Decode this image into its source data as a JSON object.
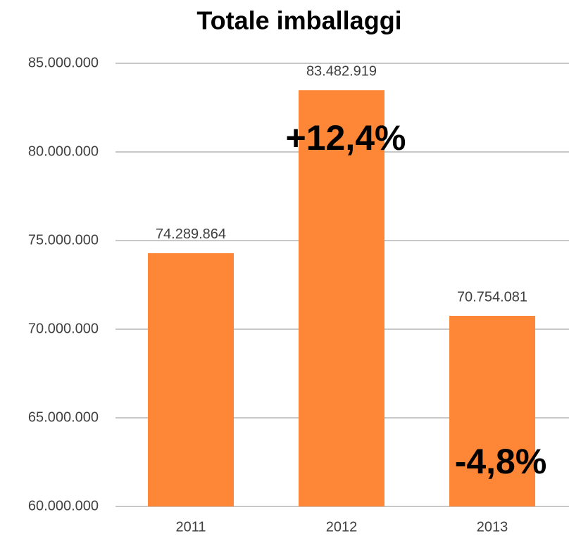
{
  "chart_data": {
    "type": "bar",
    "title": "Totale imballaggi",
    "categories": [
      "2011",
      "2012",
      "2013"
    ],
    "values": [
      74289864,
      83482919,
      70754081
    ],
    "value_labels": [
      "74.289.864",
      "83.482.919",
      "70.754.081"
    ],
    "color": "#fd8737",
    "ylim": [
      60000000,
      85000000
    ],
    "yticks": [
      {
        "value": 60000000,
        "label": "60.000.000"
      },
      {
        "value": 65000000,
        "label": "65.000.000"
      },
      {
        "value": 70000000,
        "label": "70.000.000"
      },
      {
        "value": 75000000,
        "label": "75.000.000"
      },
      {
        "value": 80000000,
        "label": "80.000.000"
      },
      {
        "value": 85000000,
        "label": "85.000.000"
      }
    ],
    "grid": true,
    "annotations": [
      "+12,4%",
      "-4,8%"
    ]
  }
}
